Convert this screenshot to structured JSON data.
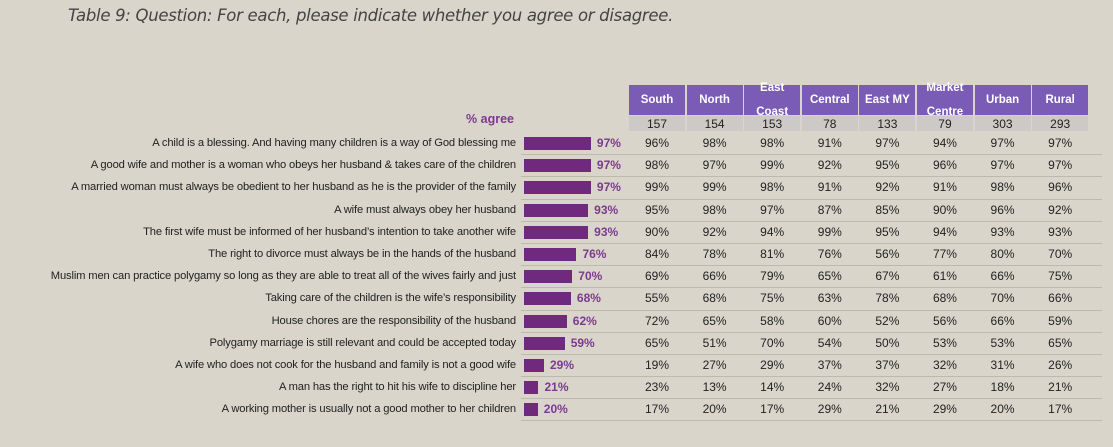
{
  "title": "Table 9: Question: For each, please indicate whether you agree or disagree.",
  "chart_data": {
    "type": "table",
    "title": "Table 9: Question: For each, please indicate whether you agree or disagree.",
    "bar_header": "% agree",
    "columns": [
      "South",
      "North",
      "East Coast",
      "Central",
      "East MY",
      "Market Centre",
      "Urban",
      "Rural"
    ],
    "sample_sizes": [
      157,
      154,
      153,
      78,
      133,
      79,
      303,
      293
    ],
    "rows": [
      {
        "statement": "A child is a blessing. And having many children is a way of God blessing  me",
        "agree": 97,
        "values": [
          96,
          98,
          98,
          91,
          97,
          94,
          97,
          97
        ]
      },
      {
        "statement": "A good wife and mother is a woman who obeys her husband & takes care of the children",
        "agree": 97,
        "values": [
          98,
          97,
          99,
          92,
          95,
          96,
          97,
          97
        ]
      },
      {
        "statement": "A married woman must always be obedient to her husband as he is the provider of the family",
        "agree": 97,
        "values": [
          99,
          99,
          98,
          91,
          92,
          91,
          98,
          96
        ]
      },
      {
        "statement": "A wife must always obey her husband",
        "agree": 93,
        "values": [
          95,
          98,
          97,
          87,
          85,
          90,
          96,
          92
        ]
      },
      {
        "statement": "The first wife must be informed of her husband’s intention to take another wife",
        "agree": 93,
        "values": [
          90,
          92,
          94,
          99,
          95,
          94,
          93,
          93
        ]
      },
      {
        "statement": "The right to divorce must always be in the hands of the husband",
        "agree": 76,
        "values": [
          84,
          78,
          81,
          76,
          56,
          77,
          80,
          70
        ]
      },
      {
        "statement": "Muslim men can practice polygamy so long as they are able to treat all of the wives fairly and just",
        "agree": 70,
        "values": [
          69,
          66,
          79,
          65,
          67,
          61,
          66,
          75
        ]
      },
      {
        "statement": "Taking care of the children is the wife’s responsibility",
        "agree": 68,
        "values": [
          55,
          68,
          75,
          63,
          78,
          68,
          70,
          66
        ]
      },
      {
        "statement": "House chores are the responsibility  of the husband",
        "agree": 62,
        "values": [
          72,
          65,
          58,
          60,
          52,
          56,
          66,
          59
        ]
      },
      {
        "statement": "Polygamy marriage is still relevant and could  be accepted today",
        "agree": 59,
        "values": [
          65,
          51,
          70,
          54,
          50,
          53,
          53,
          65
        ]
      },
      {
        "statement": "A wife who does not cook for the husband and family is not a good wife",
        "agree": 29,
        "values": [
          19,
          27,
          29,
          37,
          37,
          32,
          31,
          26
        ]
      },
      {
        "statement": "A man has the right to hit his wife to discipline her",
        "agree": 21,
        "values": [
          23,
          13,
          14,
          24,
          32,
          27,
          18,
          21
        ]
      },
      {
        "statement": "A working mother is usually not a good mother to her children",
        "agree": 20,
        "values": [
          17,
          20,
          17,
          29,
          21,
          29,
          20,
          17
        ]
      }
    ],
    "unit": "%",
    "colors": {
      "header": "#7a5cb7",
      "bar": "#6f2a7e",
      "bar_label": "#7b3a8e",
      "n_row": "#cdc9c6",
      "background": "#d9d5cb"
    }
  }
}
